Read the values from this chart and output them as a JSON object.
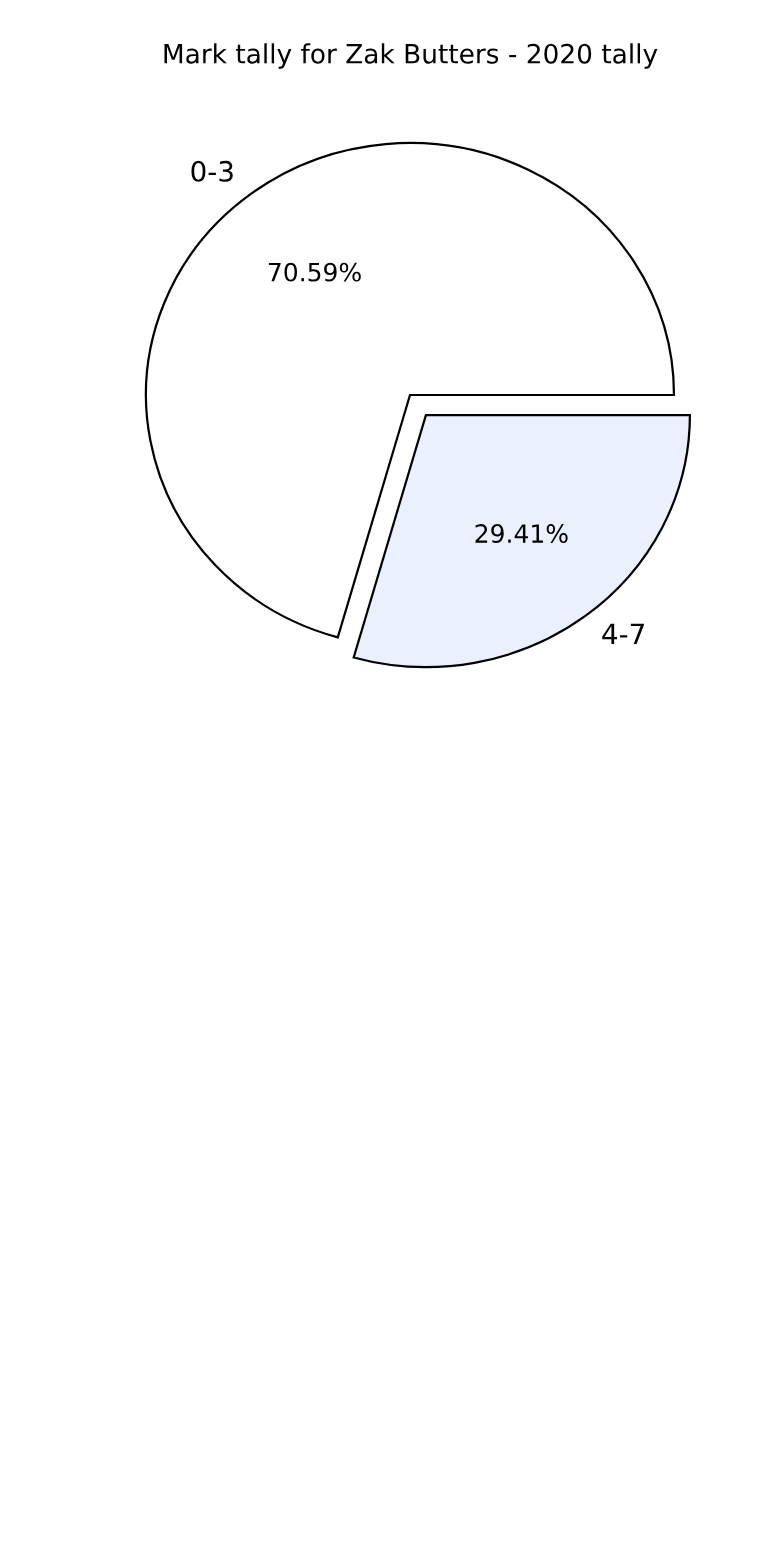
{
  "chart_data": {
    "type": "pie",
    "title": "Mark tally for Zak Butters - 2020 tally",
    "categories": [
      "0-3",
      "4-7"
    ],
    "values": [
      70.59,
      29.41
    ],
    "colors": [
      "#ffffff",
      "#eaf0fd"
    ],
    "value_labels": [
      "70.59%",
      "29.41%"
    ],
    "legend": false
  }
}
